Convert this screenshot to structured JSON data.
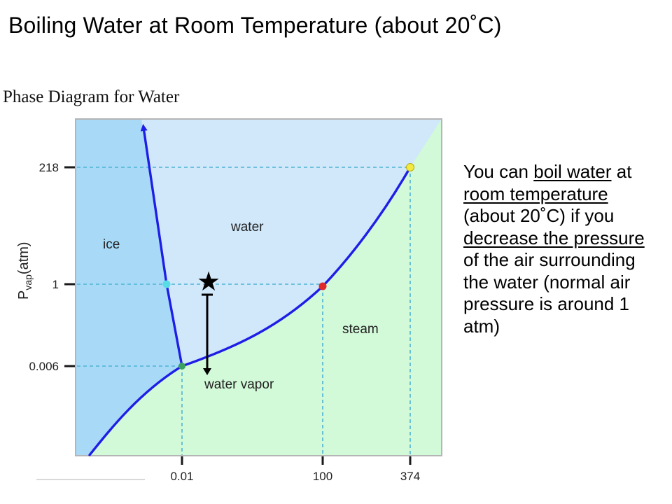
{
  "title": "Boiling Water at Room Temperature (about 20˚C)",
  "diagram": {
    "heading": "Phase Diagram for Water",
    "y_axis_label_main": "P",
    "y_axis_label_sub": "vap",
    "y_axis_label_unit": "(atm)",
    "y_ticks": [
      "218",
      "1",
      "0.006"
    ],
    "x_ticks": [
      "0.01",
      "100",
      "374"
    ],
    "regions": {
      "ice": "ice",
      "water": "water",
      "steam": "steam",
      "vapor": "water vapor"
    },
    "colors": {
      "ice_region": "#a8daf8",
      "water_region": "#d0e8fa",
      "gas_region": "#d2f9d8",
      "border": "#b5b5b5",
      "phase_line": "#1e1ee6",
      "guide_line": "#4fb3d2",
      "triple_point": "#3aa060",
      "critical_point": "#f2ea3c",
      "boiling_point": "#e02a2a",
      "melting_point": "#58dce6"
    }
  },
  "annotation": {
    "star": "★",
    "segments": [
      {
        "text": "You can ",
        "u": false
      },
      {
        "text": "boil water",
        "u": true
      },
      {
        "text": " at ",
        "u": false
      },
      {
        "text": "room temperature",
        "u": true
      },
      {
        "text": " (about 20˚C) if you ",
        "u": false
      },
      {
        "text": "decrease the pressure",
        "u": true
      },
      {
        "text": " of the air surrounding the water (normal air pressure is around 1 atm)",
        "u": false
      }
    ]
  }
}
